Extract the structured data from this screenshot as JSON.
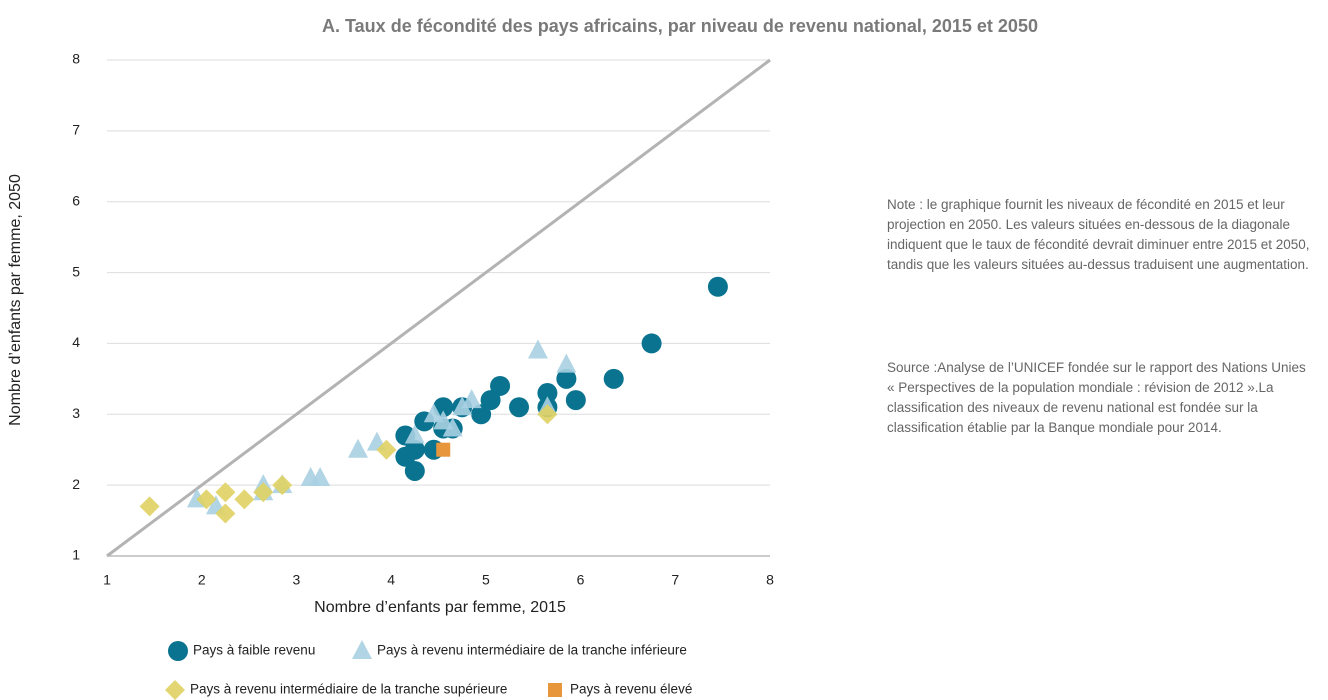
{
  "chart_data": {
    "type": "scatter",
    "title": "A.    Taux de fécondité des pays africains, par niveau de revenu national, 2015 et 2050",
    "x_label": "Nombre d’enfants par femme, 2015",
    "y_label": "Nombre d’enfants par femme, 2050",
    "xlim": [
      1,
      8
    ],
    "ylim": [
      1,
      8
    ],
    "xticks": [
      1,
      2,
      3,
      4,
      5,
      6,
      7,
      8
    ],
    "yticks": [
      1,
      2,
      3,
      4,
      5,
      6,
      7,
      8
    ],
    "grid": true,
    "diagonal": true,
    "diagonal_color": "#b3b3b3",
    "series": [
      {
        "name": "Pays à faible revenu",
        "color": "#0a7390",
        "marker": "circle",
        "x": [
          7.45,
          6.75,
          6.35,
          5.95,
          5.85,
          5.65,
          5.65,
          5.35,
          5.15,
          5.05,
          4.95,
          4.75,
          4.55,
          4.65,
          4.35,
          4.45,
          4.15,
          4.15,
          4.25,
          4.25,
          4.55
        ],
        "values": [
          4.8,
          4.0,
          3.5,
          3.2,
          3.5,
          3.3,
          3.1,
          3.1,
          3.4,
          3.2,
          3.0,
          3.1,
          3.1,
          2.8,
          2.9,
          2.5,
          2.7,
          2.4,
          2.5,
          2.2,
          2.8
        ]
      },
      {
        "name": "Pays à revenu intermédiaire de la tranche inférieure",
        "color": "#a8d0e2",
        "marker": "triangle",
        "x": [
          5.55,
          5.85,
          5.65,
          4.85,
          4.75,
          4.55,
          4.45,
          4.65,
          4.25,
          3.85,
          3.65,
          3.25,
          3.15,
          2.65,
          1.95,
          2.15,
          2.65,
          2.85
        ],
        "values": [
          3.9,
          3.7,
          3.1,
          3.2,
          3.1,
          2.9,
          3.0,
          2.8,
          2.7,
          2.6,
          2.5,
          2.1,
          2.1,
          2.0,
          1.8,
          1.7,
          1.9,
          2.0
        ]
      },
      {
        "name": "Pays à revenu intermédiaire de la tranche supérieure",
        "color": "#e0d263",
        "marker": "diamond",
        "x": [
          1.45,
          2.05,
          2.25,
          2.25,
          2.45,
          2.65,
          2.85,
          3.95,
          5.65
        ],
        "values": [
          1.7,
          1.8,
          1.9,
          1.6,
          1.8,
          1.9,
          2.0,
          2.5,
          3.0
        ]
      },
      {
        "name": "Pays à revenu élevé",
        "color": "#e8963c",
        "marker": "square",
        "x": [
          4.55
        ],
        "values": [
          2.5
        ]
      }
    ],
    "notes": [
      "Note : le graphique fournit les niveaux de fécondité en 2015 et leur projection en 2050. Les valeurs situées en-dessous de la diagonale indiquent que le taux de fécondité devrait diminuer entre 2015 et 2050, tandis que les valeurs situées au-dessus traduisent une augmentation.",
      "Source :Analyse de l’UNICEF fondée sur le rapport des Nations Unies « Perspectives de la population mondiale : révision de 2012 ».La classification des niveaux de revenu national est fondée sur la classification établie par la Banque mondiale pour 2014."
    ]
  }
}
